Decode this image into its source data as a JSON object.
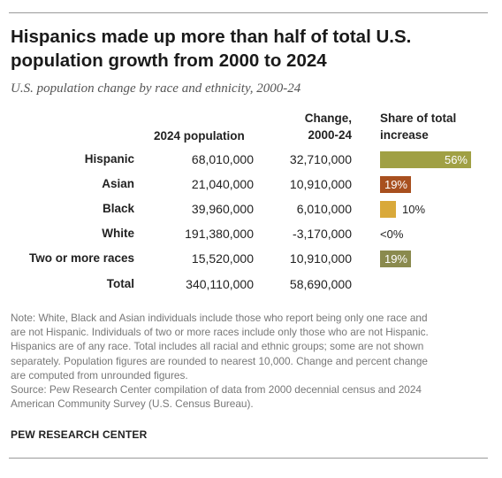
{
  "title_lines": [
    "Hispanics made up more than half of total U.S.",
    "population growth from 2000 to 2024"
  ],
  "subtitle": "U.S. population change by race and ethnicity, 2000-24",
  "columns": {
    "population": "2024 population",
    "change_line1": "Change,",
    "change_line2": "2000-24",
    "share_line1": "Share of total",
    "share_line2": "increase"
  },
  "chart_data": {
    "type": "table",
    "columns": [
      "2024 population",
      "Change, 2000-24",
      "Share of total increase"
    ],
    "rows": [
      {
        "label": "Hispanic",
        "population": "68,010,000",
        "change": "32,710,000",
        "share": 56,
        "share_label": "56%",
        "color": "#a0a044",
        "label_inside": true
      },
      {
        "label": "Asian",
        "population": "21,040,000",
        "change": "10,910,000",
        "share": 19,
        "share_label": "19%",
        "color": "#a8501f",
        "label_inside": true
      },
      {
        "label": "Black",
        "population": "39,960,000",
        "change": "6,010,000",
        "share": 10,
        "share_label": "10%",
        "color": "#d9a93a",
        "label_inside": false
      },
      {
        "label": "White",
        "population": "191,380,000",
        "change": "-3,170,000",
        "share": 0,
        "share_label": "<0%",
        "color": "#000000",
        "label_inside": false
      },
      {
        "label": "Two or more races",
        "population": "15,520,000",
        "change": "10,910,000",
        "share": 19,
        "share_label": "19%",
        "color": "#8a8a4e",
        "label_inside": true
      }
    ],
    "total": {
      "label": "Total",
      "population": "340,110,000",
      "change": "58,690,000"
    }
  },
  "note_lines": [
    "Note: White, Black and Asian individuals include those who report being only one race and",
    "are not Hispanic. Individuals of two or more races include only those who are not Hispanic.",
    "Hispanics are of any race. Total includes all racial and ethnic groups; some are not shown",
    "separately. Population figures are rounded to nearest 10,000. Change and percent change",
    "are computed from unrounded figures."
  ],
  "source_lines": [
    "Source: Pew Research Center compilation of data from 2000 decennial census and 2024",
    "American Community Survey (U.S. Census Bureau)."
  ],
  "brand": "PEW RESEARCH CENTER"
}
